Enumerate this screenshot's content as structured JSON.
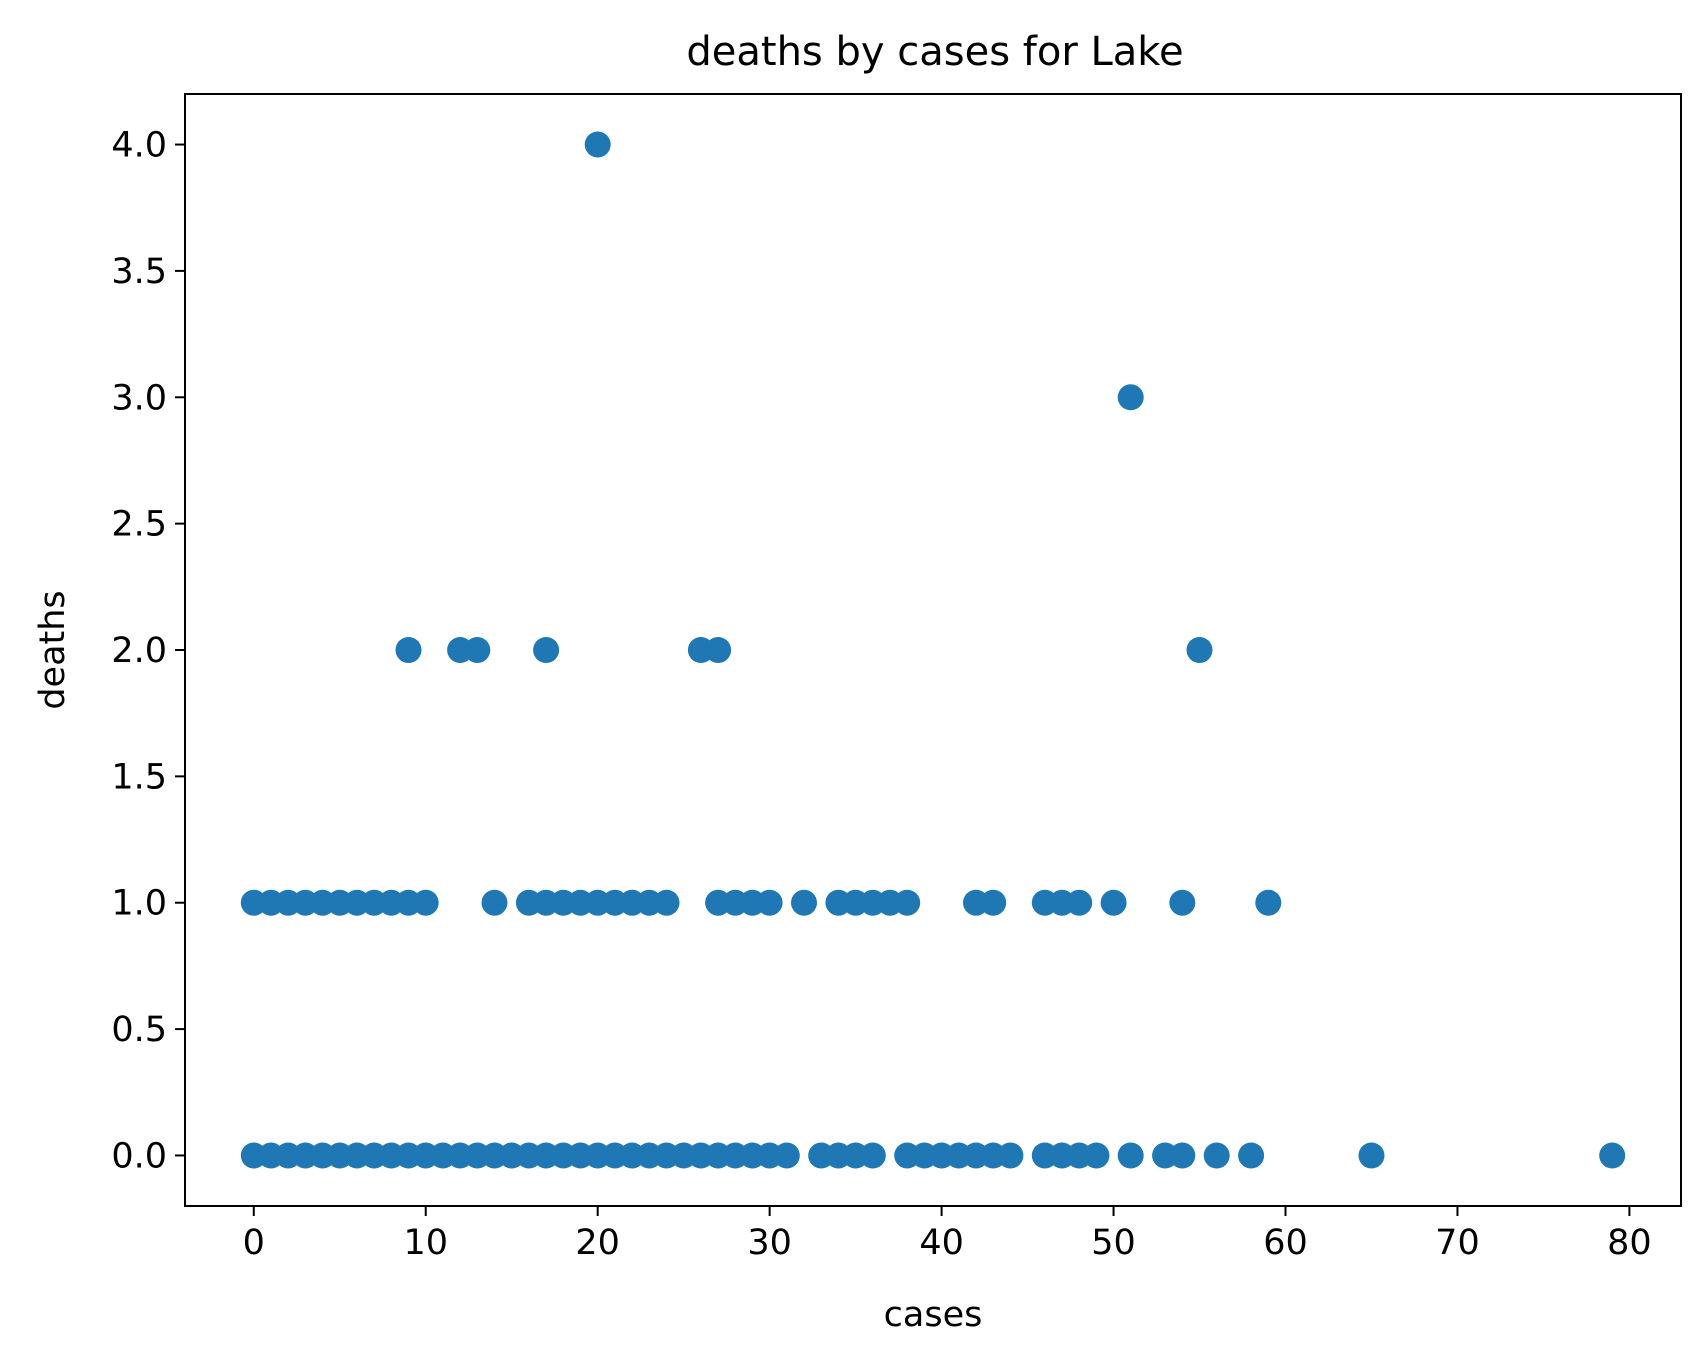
{
  "chart_data": {
    "type": "scatter",
    "title": "deaths by cases for Lake",
    "xlabel": "cases",
    "ylabel": "deaths",
    "xlim": [
      -4,
      83
    ],
    "ylim": [
      -0.2,
      4.2
    ],
    "xticks": [
      0,
      10,
      20,
      30,
      40,
      50,
      60,
      70,
      80
    ],
    "xtick_labels": [
      "0",
      "10",
      "20",
      "30",
      "40",
      "50",
      "60",
      "70",
      "80"
    ],
    "yticks": [
      0,
      0.5,
      1,
      1.5,
      2,
      2.5,
      3,
      3.5,
      4
    ],
    "ytick_labels": [
      "0.0",
      "0.5",
      "1.0",
      "1.5",
      "2.0",
      "2.5",
      "3.0",
      "3.5",
      "4.0"
    ],
    "grid": false,
    "marker_color": "#1f77b4",
    "points": [
      [
        0,
        0
      ],
      [
        1,
        0
      ],
      [
        2,
        0
      ],
      [
        3,
        0
      ],
      [
        4,
        0
      ],
      [
        5,
        0
      ],
      [
        6,
        0
      ],
      [
        7,
        0
      ],
      [
        8,
        0
      ],
      [
        9,
        0
      ],
      [
        10,
        0
      ],
      [
        11,
        0
      ],
      [
        12,
        0
      ],
      [
        13,
        0
      ],
      [
        14,
        0
      ],
      [
        15,
        0
      ],
      [
        16,
        0
      ],
      [
        17,
        0
      ],
      [
        18,
        0
      ],
      [
        19,
        0
      ],
      [
        20,
        0
      ],
      [
        21,
        0
      ],
      [
        22,
        0
      ],
      [
        23,
        0
      ],
      [
        24,
        0
      ],
      [
        25,
        0
      ],
      [
        26,
        0
      ],
      [
        27,
        0
      ],
      [
        28,
        0
      ],
      [
        29,
        0
      ],
      [
        30,
        0
      ],
      [
        31,
        0
      ],
      [
        33,
        0
      ],
      [
        34,
        0
      ],
      [
        35,
        0
      ],
      [
        36,
        0
      ],
      [
        38,
        0
      ],
      [
        39,
        0
      ],
      [
        40,
        0
      ],
      [
        41,
        0
      ],
      [
        42,
        0
      ],
      [
        43,
        0
      ],
      [
        44,
        0
      ],
      [
        46,
        0
      ],
      [
        47,
        0
      ],
      [
        48,
        0
      ],
      [
        49,
        0
      ],
      [
        51,
        0
      ],
      [
        53,
        0
      ],
      [
        54,
        0
      ],
      [
        56,
        0
      ],
      [
        58,
        0
      ],
      [
        65,
        0
      ],
      [
        79,
        0
      ],
      [
        0,
        1
      ],
      [
        1,
        1
      ],
      [
        2,
        1
      ],
      [
        3,
        1
      ],
      [
        4,
        1
      ],
      [
        5,
        1
      ],
      [
        6,
        1
      ],
      [
        7,
        1
      ],
      [
        8,
        1
      ],
      [
        9,
        1
      ],
      [
        10,
        1
      ],
      [
        14,
        1
      ],
      [
        16,
        1
      ],
      [
        17,
        1
      ],
      [
        18,
        1
      ],
      [
        19,
        1
      ],
      [
        20,
        1
      ],
      [
        21,
        1
      ],
      [
        22,
        1
      ],
      [
        23,
        1
      ],
      [
        24,
        1
      ],
      [
        27,
        1
      ],
      [
        28,
        1
      ],
      [
        29,
        1
      ],
      [
        30,
        1
      ],
      [
        32,
        1
      ],
      [
        34,
        1
      ],
      [
        35,
        1
      ],
      [
        36,
        1
      ],
      [
        37,
        1
      ],
      [
        38,
        1
      ],
      [
        42,
        1
      ],
      [
        43,
        1
      ],
      [
        46,
        1
      ],
      [
        47,
        1
      ],
      [
        48,
        1
      ],
      [
        50,
        1
      ],
      [
        54,
        1
      ],
      [
        59,
        1
      ],
      [
        9,
        2
      ],
      [
        12,
        2
      ],
      [
        13,
        2
      ],
      [
        17,
        2
      ],
      [
        26,
        2
      ],
      [
        27,
        2
      ],
      [
        55,
        2
      ],
      [
        51,
        3
      ],
      [
        20,
        4
      ]
    ]
  }
}
